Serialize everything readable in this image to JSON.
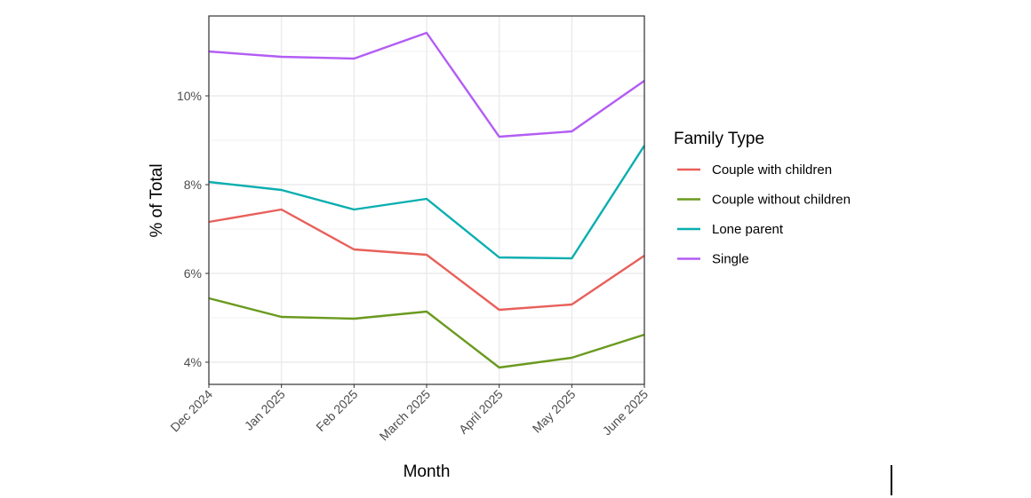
{
  "chart_data": {
    "type": "line",
    "title": "",
    "xlabel": "Month",
    "ylabel": "% of Total",
    "categories": [
      "Dec 2024",
      "Jan 2025",
      "Feb 2025",
      "March 2025",
      "April 2025",
      "May 2025",
      "June 2025"
    ],
    "ylim": [
      3.5,
      11.8
    ],
    "yticks": [
      4,
      6,
      8,
      10
    ],
    "ytick_labels": [
      "4%",
      "6%",
      "8%",
      "10%"
    ],
    "grid": true,
    "legend_title": "Family Type",
    "legend_position": "right",
    "series": [
      {
        "name": "Couple with children",
        "color": "#e8605a",
        "values": [
          7.16,
          7.44,
          6.54,
          6.42,
          5.18,
          5.3,
          6.4
        ]
      },
      {
        "name": "Couple without children",
        "color": "#6a9a1f",
        "values": [
          5.44,
          5.02,
          4.98,
          5.14,
          3.88,
          4.1,
          4.62
        ]
      },
      {
        "name": "Lone parent",
        "color": "#0aaeb0",
        "values": [
          8.06,
          7.88,
          7.44,
          7.68,
          6.36,
          6.34,
          8.88
        ]
      },
      {
        "name": "Single",
        "color": "#b35cf5",
        "values": [
          11.0,
          10.88,
          10.84,
          11.42,
          9.08,
          9.2,
          10.34
        ]
      }
    ]
  }
}
